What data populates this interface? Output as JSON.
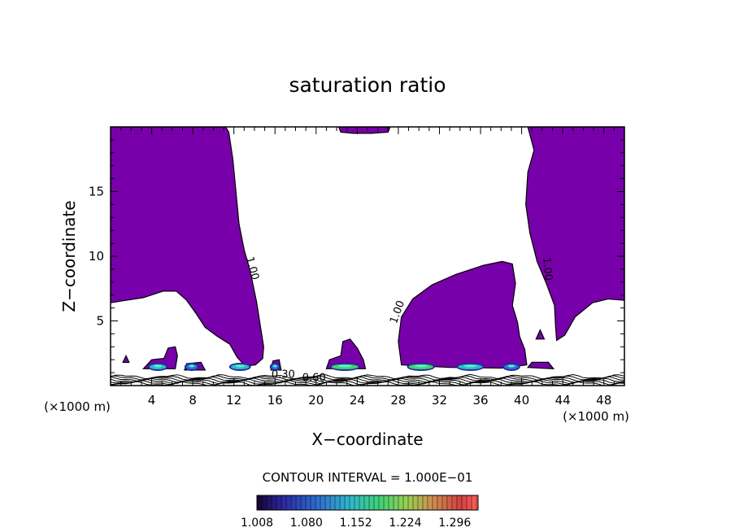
{
  "chart_data": {
    "type": "heatmap",
    "title": "saturation ratio",
    "xlabel": "X−coordinate",
    "ylabel": "Z−coordinate",
    "x_unit": "(×1000 m)",
    "x_unit_right": "(×1000 m)",
    "xlim": [
      0,
      50
    ],
    "ylim": [
      0,
      20
    ],
    "xticks": [
      4,
      8,
      12,
      16,
      20,
      24,
      28,
      32,
      36,
      40,
      44,
      48
    ],
    "yticks": [
      5,
      10,
      15
    ],
    "fill_color": "#7700aa",
    "contour_interval_text": "CONTOUR INTERVAL = 1.000E−01",
    "colorbar_ticks": [
      "1.008",
      "1.080",
      "1.152",
      "1.224",
      "1.296"
    ],
    "colorbar_range": [
      1.008,
      1.33
    ],
    "contour_labels": [
      {
        "text": "1.00",
        "x": 13.5,
        "z": 9.0,
        "rotate": 75
      },
      {
        "text": "1.00",
        "x": 28.2,
        "z": 5.6,
        "rotate": -70
      },
      {
        "text": "1.00",
        "x": 42.2,
        "z": 9.0,
        "rotate": 85
      },
      {
        "text": "0.30",
        "x": 16.8,
        "z": 0.6,
        "rotate": 0
      },
      {
        "text": "0.60",
        "x": 19.8,
        "z": 0.35,
        "rotate": 0
      }
    ],
    "regions": [
      {
        "name": "supersaturated-region-left",
        "boundary": [
          [
            0,
            20
          ],
          [
            11.2,
            20
          ],
          [
            11.5,
            19.6
          ],
          [
            11.9,
            17.5
          ],
          [
            12.2,
            15
          ],
          [
            12.5,
            12.5
          ],
          [
            13,
            10.5
          ],
          [
            13.6,
            8.8
          ],
          [
            14.2,
            6.5
          ],
          [
            14.6,
            4.5
          ],
          [
            14.9,
            3
          ],
          [
            14.8,
            2.1
          ],
          [
            14.1,
            1.6
          ],
          [
            13.1,
            1.5
          ],
          [
            12.3,
            2.2
          ],
          [
            11.6,
            3.2
          ],
          [
            10.4,
            3.8
          ],
          [
            9.2,
            4.5
          ],
          [
            8.3,
            5.6
          ],
          [
            7.4,
            6.6
          ],
          [
            6.4,
            7.3
          ],
          [
            5.1,
            7.3
          ],
          [
            3.2,
            6.8
          ],
          [
            1.5,
            6.6
          ],
          [
            0,
            6.4
          ]
        ]
      },
      {
        "name": "supersaturated-region-top",
        "boundary": [
          [
            22.2,
            20
          ],
          [
            27.2,
            20
          ],
          [
            27,
            19.6
          ],
          [
            25.4,
            19.5
          ],
          [
            23.6,
            19.5
          ],
          [
            22.4,
            19.6
          ]
        ]
      },
      {
        "name": "supersaturated-region-middle",
        "boundary": [
          [
            28.3,
            1.6
          ],
          [
            28,
            3.4
          ],
          [
            28.3,
            5.3
          ],
          [
            29.4,
            6.7
          ],
          [
            31.3,
            7.8
          ],
          [
            33.6,
            8.6
          ],
          [
            36.3,
            9.3
          ],
          [
            38.1,
            9.6
          ],
          [
            39.1,
            9.4
          ],
          [
            39.4,
            7.9
          ],
          [
            39.1,
            6.2
          ],
          [
            39.6,
            4.9
          ],
          [
            39.8,
            3.8
          ],
          [
            40.3,
            2.8
          ],
          [
            40.5,
            1.6
          ],
          [
            38,
            1.35
          ],
          [
            33,
            1.4
          ]
        ]
      },
      {
        "name": "supersaturated-region-right",
        "boundary": [
          [
            40.6,
            20
          ],
          [
            50,
            20
          ],
          [
            50,
            6.6
          ],
          [
            48.4,
            6.7
          ],
          [
            46.9,
            6.4
          ],
          [
            45.2,
            5.3
          ],
          [
            44.2,
            3.9
          ],
          [
            43.4,
            3.5
          ],
          [
            43.3,
            4.6
          ],
          [
            43.2,
            6.2
          ],
          [
            42.4,
            7.9
          ],
          [
            41.5,
            9.6
          ],
          [
            40.8,
            11.8
          ],
          [
            40.4,
            14
          ],
          [
            40.6,
            16.5
          ],
          [
            41.2,
            18.2
          ]
        ]
      },
      {
        "name": "cell-x4-8",
        "boundary": [
          [
            3.2,
            1.3
          ],
          [
            4,
            2
          ],
          [
            5.2,
            2.1
          ],
          [
            5.6,
            2.9
          ],
          [
            6.3,
            3
          ],
          [
            6.5,
            2.3
          ],
          [
            6.3,
            1.3
          ]
        ]
      },
      {
        "name": "cell-x8",
        "boundary": [
          [
            7.2,
            1.2
          ],
          [
            7.4,
            1.7
          ],
          [
            8.8,
            1.8
          ],
          [
            9.2,
            1.2
          ]
        ]
      },
      {
        "name": "cell-x16",
        "boundary": [
          [
            15.6,
            1.2
          ],
          [
            15.8,
            1.9
          ],
          [
            16.4,
            2
          ],
          [
            16.6,
            1.2
          ]
        ]
      },
      {
        "name": "cell-x23",
        "boundary": [
          [
            21,
            1.3
          ],
          [
            21.3,
            2
          ],
          [
            22.4,
            2.3
          ],
          [
            22.6,
            3.4
          ],
          [
            23.3,
            3.6
          ],
          [
            24,
            2.9
          ],
          [
            24.6,
            2
          ],
          [
            24.8,
            1.3
          ]
        ]
      },
      {
        "name": "cell-x1",
        "boundary": [
          [
            1.2,
            1.8
          ],
          [
            1.5,
            2.3
          ],
          [
            1.8,
            1.8
          ]
        ]
      },
      {
        "name": "cell-x41",
        "boundary": [
          [
            40.6,
            1.4
          ],
          [
            41,
            1.8
          ],
          [
            42.6,
            1.8
          ],
          [
            43.1,
            1.3
          ]
        ]
      },
      {
        "name": "cell-x42",
        "boundary": [
          [
            41.4,
            3.6
          ],
          [
            41.8,
            4.3
          ],
          [
            42.2,
            3.6
          ]
        ]
      }
    ],
    "high_ratio_cores": [
      {
        "x": 4.6,
        "z": 1.45,
        "w": 1.6,
        "level": 1.15
      },
      {
        "x": 7.9,
        "z": 1.45,
        "w": 1.1,
        "level": 1.08
      },
      {
        "x": 12.6,
        "z": 1.45,
        "w": 1.8,
        "level": 1.15
      },
      {
        "x": 16.0,
        "z": 1.45,
        "w": 0.7,
        "level": 1.05
      },
      {
        "x": 22.8,
        "z": 1.45,
        "w": 2.6,
        "level": 1.2
      },
      {
        "x": 30.2,
        "z": 1.45,
        "w": 2.4,
        "level": 1.2
      },
      {
        "x": 35.0,
        "z": 1.45,
        "w": 2.4,
        "level": 1.15
      },
      {
        "x": 39.0,
        "z": 1.45,
        "w": 1.4,
        "level": 1.05
      }
    ],
    "boundary_layer_contour_levels": [
      0.3,
      0.4,
      0.5,
      0.6,
      0.7,
      0.8,
      0.9
    ]
  }
}
